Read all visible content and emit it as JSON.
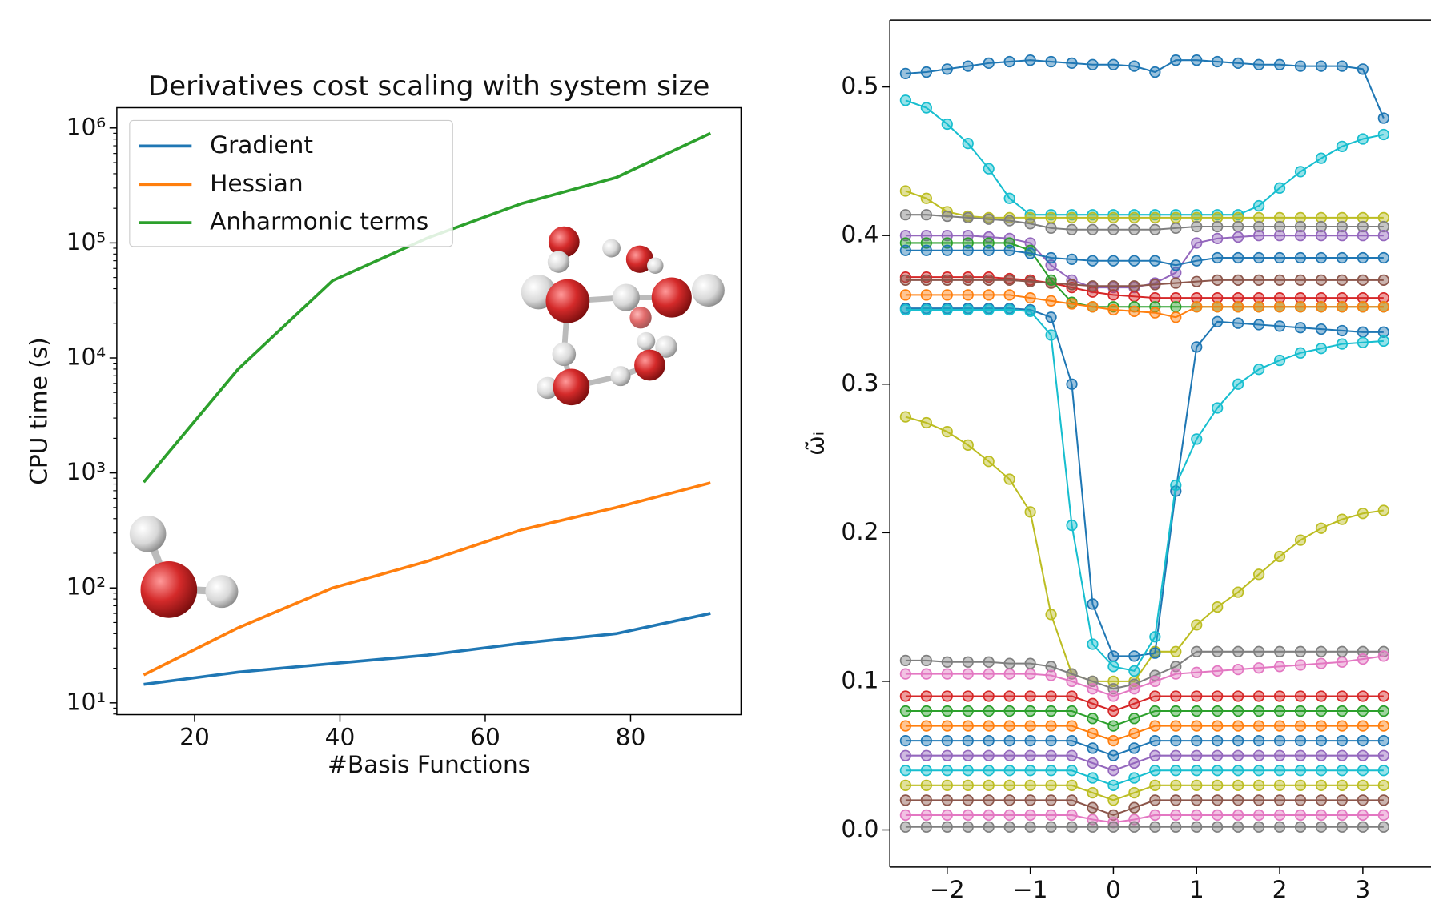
{
  "chart_data": [
    {
      "type": "line",
      "title": "Derivatives cost scaling with system size",
      "xlabel": "#Basis Functions",
      "ylabel": "CPU time (s)",
      "yscale": "log",
      "legend": "upper left",
      "x": [
        13,
        26,
        39,
        52,
        65,
        78,
        91
      ],
      "series": [
        {
          "name": "Gradient",
          "color": "#1f77b4",
          "values": [
            14.5,
            18.5,
            22,
            26,
            33,
            40,
            60
          ]
        },
        {
          "name": "Hessian",
          "color": "#ff7f0e",
          "values": [
            17.5,
            45,
            100,
            170,
            320,
            500,
            820
          ]
        },
        {
          "name": "Anharmonic terms",
          "color": "#2ca02c",
          "values": [
            830,
            8000,
            47000,
            110000,
            220000,
            370000,
            900000
          ]
        }
      ],
      "xlim": [
        9.3,
        95.2
      ],
      "ylim": [
        7.9,
        1500000
      ],
      "xticks": [
        20,
        40,
        60,
        80
      ],
      "yticks": [
        {
          "value": 10,
          "label": "10¹"
        },
        {
          "value": 100,
          "label": "10²"
        },
        {
          "value": 1000,
          "label": "10³"
        },
        {
          "value": 10000,
          "label": "10⁴"
        },
        {
          "value": 100000,
          "label": "10⁵"
        },
        {
          "value": 1000000,
          "label": "10⁶"
        }
      ]
    },
    {
      "type": "line",
      "ylabel": "ω̃ᵢ",
      "marker": "o",
      "x": [
        -2.5,
        -2.25,
        -2,
        -1.75,
        -1.5,
        -1.25,
        -1,
        -0.75,
        -0.5,
        -0.25,
        0,
        0.25,
        0.5,
        0.75,
        1,
        1.25,
        1.5,
        1.75,
        2,
        2.25,
        2.5,
        2.75,
        3,
        3.25
      ],
      "series": [
        {
          "color": "#1f77b4",
          "values": [
            0.509,
            0.51,
            0.512,
            0.514,
            0.516,
            0.517,
            0.518,
            0.517,
            0.516,
            0.515,
            0.515,
            0.514,
            0.51,
            0.518,
            0.518,
            0.517,
            0.516,
            0.515,
            0.515,
            0.514,
            0.514,
            0.514,
            0.512,
            0.479
          ]
        },
        {
          "color": "#17becf",
          "values": [
            0.491,
            0.486,
            0.475,
            0.462,
            0.445,
            0.425,
            0.414,
            0.414,
            0.414,
            0.414,
            0.414,
            0.414,
            0.414,
            0.414,
            0.414,
            0.414,
            0.414,
            0.42,
            0.432,
            0.443,
            0.452,
            0.46,
            0.465,
            0.468
          ]
        },
        {
          "color": "#bcbd22",
          "values": [
            0.278,
            0.274,
            0.268,
            0.259,
            0.248,
            0.236,
            0.214,
            0.145,
            0.105,
            0.1,
            0.1,
            0.1,
            0.12,
            0.12,
            0.138,
            0.15,
            0.16,
            0.172,
            0.184,
            0.195,
            0.203,
            0.209,
            0.213,
            0.215
          ]
        },
        {
          "color": "#1f77b4",
          "values": [
            0.351,
            0.351,
            0.351,
            0.351,
            0.351,
            0.351,
            0.35,
            0.345,
            0.3,
            0.152,
            0.117,
            0.117,
            0.119,
            0.228,
            0.325,
            0.342,
            0.341,
            0.34,
            0.339,
            0.338,
            0.337,
            0.336,
            0.335,
            0.335
          ]
        },
        {
          "color": "#17becf",
          "values": [
            0.35,
            0.35,
            0.35,
            0.35,
            0.35,
            0.35,
            0.349,
            0.333,
            0.205,
            0.125,
            0.11,
            0.107,
            0.13,
            0.232,
            0.263,
            0.284,
            0.3,
            0.31,
            0.316,
            0.321,
            0.324,
            0.327,
            0.328,
            0.329
          ]
        },
        {
          "color": "#7f7f7f",
          "values": [
            0.114,
            0.114,
            0.113,
            0.113,
            0.113,
            0.112,
            0.112,
            0.11,
            0.105,
            0.1,
            0.095,
            0.098,
            0.104,
            0.11,
            0.12,
            0.12,
            0.12,
            0.12,
            0.12,
            0.12,
            0.12,
            0.12,
            0.12,
            0.12
          ]
        },
        {
          "color": "#e377c2",
          "values": [
            0.105,
            0.105,
            0.105,
            0.105,
            0.105,
            0.105,
            0.105,
            0.104,
            0.1,
            0.095,
            0.09,
            0.095,
            0.1,
            0.105,
            0.106,
            0.107,
            0.108,
            0.109,
            0.11,
            0.111,
            0.112,
            0.113,
            0.115,
            0.117
          ]
        },
        {
          "color": "#bcbd22",
          "values": [
            0.43,
            0.425,
            0.416,
            0.413,
            0.412,
            0.412,
            0.412,
            0.412,
            0.412,
            0.412,
            0.412,
            0.412,
            0.412,
            0.412,
            0.412,
            0.412,
            0.412,
            0.412,
            0.412,
            0.412,
            0.412,
            0.412,
            0.412,
            0.412
          ]
        },
        {
          "color": "#7f7f7f",
          "values": [
            0.414,
            0.414,
            0.413,
            0.412,
            0.411,
            0.41,
            0.408,
            0.405,
            0.404,
            0.404,
            0.404,
            0.404,
            0.404,
            0.405,
            0.406,
            0.406,
            0.406,
            0.406,
            0.406,
            0.406,
            0.406,
            0.406,
            0.406,
            0.406
          ]
        },
        {
          "color": "#9467bd",
          "values": [
            0.4,
            0.4,
            0.4,
            0.4,
            0.399,
            0.398,
            0.395,
            0.38,
            0.37,
            0.365,
            0.365,
            0.365,
            0.368,
            0.375,
            0.395,
            0.398,
            0.399,
            0.4,
            0.4,
            0.4,
            0.4,
            0.4,
            0.4,
            0.4
          ]
        },
        {
          "color": "#d62728",
          "values": [
            0.372,
            0.372,
            0.372,
            0.372,
            0.372,
            0.371,
            0.37,
            0.368,
            0.365,
            0.362,
            0.36,
            0.359,
            0.358,
            0.358,
            0.358,
            0.358,
            0.358,
            0.358,
            0.358,
            0.358,
            0.358,
            0.358,
            0.358,
            0.358
          ]
        },
        {
          "color": "#8c564b",
          "values": [
            0.37,
            0.37,
            0.37,
            0.37,
            0.37,
            0.37,
            0.369,
            0.368,
            0.367,
            0.366,
            0.366,
            0.366,
            0.367,
            0.368,
            0.369,
            0.37,
            0.37,
            0.37,
            0.37,
            0.37,
            0.37,
            0.37,
            0.37,
            0.37
          ]
        },
        {
          "color": "#2ca02c",
          "values": [
            0.395,
            0.395,
            0.395,
            0.395,
            0.395,
            0.395,
            0.39,
            0.37,
            0.355,
            0.352,
            0.352,
            0.352,
            0.352,
            0.352,
            0.352,
            0.352,
            0.352,
            0.352,
            0.352,
            0.352,
            0.352,
            0.352,
            0.352,
            0.352
          ]
        },
        {
          "color": "#ff7f0e",
          "values": [
            0.36,
            0.36,
            0.36,
            0.36,
            0.36,
            0.36,
            0.358,
            0.356,
            0.354,
            0.352,
            0.35,
            0.349,
            0.348,
            0.345,
            0.352,
            0.352,
            0.352,
            0.352,
            0.352,
            0.352,
            0.352,
            0.352,
            0.352,
            0.352
          ]
        },
        {
          "color": "#1f77b4",
          "values": [
            0.39,
            0.39,
            0.39,
            0.39,
            0.39,
            0.39,
            0.388,
            0.385,
            0.384,
            0.383,
            0.383,
            0.383,
            0.383,
            0.38,
            0.383,
            0.385,
            0.385,
            0.385,
            0.385,
            0.385,
            0.385,
            0.385,
            0.385,
            0.385
          ]
        },
        {
          "color": "#d62728",
          "values": [
            0.09,
            0.09,
            0.09,
            0.09,
            0.09,
            0.09,
            0.09,
            0.09,
            0.09,
            0.085,
            0.08,
            0.085,
            0.09,
            0.09,
            0.09,
            0.09,
            0.09,
            0.09,
            0.09,
            0.09,
            0.09,
            0.09,
            0.09,
            0.09
          ]
        },
        {
          "color": "#2ca02c",
          "values": [
            0.08,
            0.08,
            0.08,
            0.08,
            0.08,
            0.08,
            0.08,
            0.08,
            0.08,
            0.075,
            0.07,
            0.075,
            0.08,
            0.08,
            0.08,
            0.08,
            0.08,
            0.08,
            0.08,
            0.08,
            0.08,
            0.08,
            0.08,
            0.08
          ]
        },
        {
          "color": "#ff7f0e",
          "values": [
            0.07,
            0.07,
            0.07,
            0.07,
            0.07,
            0.07,
            0.07,
            0.07,
            0.07,
            0.065,
            0.06,
            0.065,
            0.07,
            0.07,
            0.07,
            0.07,
            0.07,
            0.07,
            0.07,
            0.07,
            0.07,
            0.07,
            0.07,
            0.07
          ]
        },
        {
          "color": "#1f77b4",
          "values": [
            0.06,
            0.06,
            0.06,
            0.06,
            0.06,
            0.06,
            0.06,
            0.06,
            0.06,
            0.055,
            0.05,
            0.055,
            0.06,
            0.06,
            0.06,
            0.06,
            0.06,
            0.06,
            0.06,
            0.06,
            0.06,
            0.06,
            0.06,
            0.06
          ]
        },
        {
          "color": "#9467bd",
          "values": [
            0.05,
            0.05,
            0.05,
            0.05,
            0.05,
            0.05,
            0.05,
            0.05,
            0.05,
            0.045,
            0.04,
            0.045,
            0.05,
            0.05,
            0.05,
            0.05,
            0.05,
            0.05,
            0.05,
            0.05,
            0.05,
            0.05,
            0.05,
            0.05
          ]
        },
        {
          "color": "#17becf",
          "values": [
            0.04,
            0.04,
            0.04,
            0.04,
            0.04,
            0.04,
            0.04,
            0.04,
            0.04,
            0.035,
            0.03,
            0.035,
            0.04,
            0.04,
            0.04,
            0.04,
            0.04,
            0.04,
            0.04,
            0.04,
            0.04,
            0.04,
            0.04,
            0.04
          ]
        },
        {
          "color": "#bcbd22",
          "values": [
            0.03,
            0.03,
            0.03,
            0.03,
            0.03,
            0.03,
            0.03,
            0.03,
            0.03,
            0.025,
            0.02,
            0.025,
            0.03,
            0.03,
            0.03,
            0.03,
            0.03,
            0.03,
            0.03,
            0.03,
            0.03,
            0.03,
            0.03,
            0.03
          ]
        },
        {
          "color": "#8c564b",
          "values": [
            0.02,
            0.02,
            0.02,
            0.02,
            0.02,
            0.02,
            0.02,
            0.02,
            0.02,
            0.015,
            0.01,
            0.015,
            0.02,
            0.02,
            0.02,
            0.02,
            0.02,
            0.02,
            0.02,
            0.02,
            0.02,
            0.02,
            0.02,
            0.02
          ]
        },
        {
          "color": "#e377c2",
          "values": [
            0.01,
            0.01,
            0.01,
            0.01,
            0.01,
            0.01,
            0.01,
            0.01,
            0.01,
            0.007,
            0.005,
            0.007,
            0.01,
            0.01,
            0.01,
            0.01,
            0.01,
            0.01,
            0.01,
            0.01,
            0.01,
            0.01,
            0.01,
            0.01
          ]
        },
        {
          "color": "#7f7f7f",
          "values": [
            0.002,
            0.002,
            0.002,
            0.002,
            0.002,
            0.002,
            0.002,
            0.002,
            0.002,
            0.002,
            0.002,
            0.002,
            0.002,
            0.002,
            0.002,
            0.002,
            0.002,
            0.002,
            0.002,
            0.002,
            0.002,
            0.002,
            0.002,
            0.002
          ]
        }
      ],
      "xlim": [
        -2.69,
        3.82
      ],
      "ylim": [
        -0.025,
        0.545
      ],
      "xticks": [
        {
          "value": -2,
          "label": "−2"
        },
        {
          "value": -1,
          "label": "−1"
        },
        0,
        1,
        2,
        3
      ],
      "yticks": [
        {
          "value": 0,
          "label": "0.0"
        },
        0.1,
        0.2,
        0.3,
        0.4,
        0.5
      ]
    }
  ]
}
